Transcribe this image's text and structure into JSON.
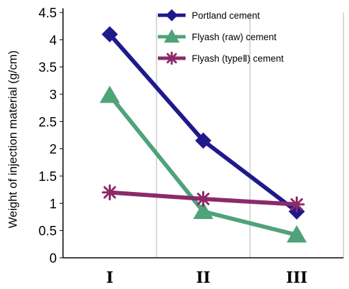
{
  "chart_data": {
    "type": "line",
    "title": "",
    "xlabel": "",
    "ylabel": "Weight of injection material (g/cm)",
    "categories": [
      "I",
      "II",
      "III"
    ],
    "ylim": [
      0,
      4.5
    ],
    "yticks": [
      "0",
      "0.5",
      "1",
      "1.5",
      "2",
      "2.5",
      "3",
      "3.5",
      "4",
      "4.5"
    ],
    "grid": "vertical-at-category-boundaries",
    "legend_position": "top-right",
    "series": [
      {
        "name": "Portland cement",
        "values": [
          4.1,
          2.15,
          0.85
        ],
        "color": "#1f1a8c",
        "marker": "diamond"
      },
      {
        "name": "Flyash (raw) cement",
        "values": [
          2.98,
          0.85,
          0.42
        ],
        "color": "#4fa37a",
        "marker": "triangle"
      },
      {
        "name": "Flyash (typeⅡ) cement",
        "values": [
          1.2,
          1.08,
          0.98
        ],
        "color": "#8b2a6a",
        "marker": "asterisk"
      }
    ]
  }
}
